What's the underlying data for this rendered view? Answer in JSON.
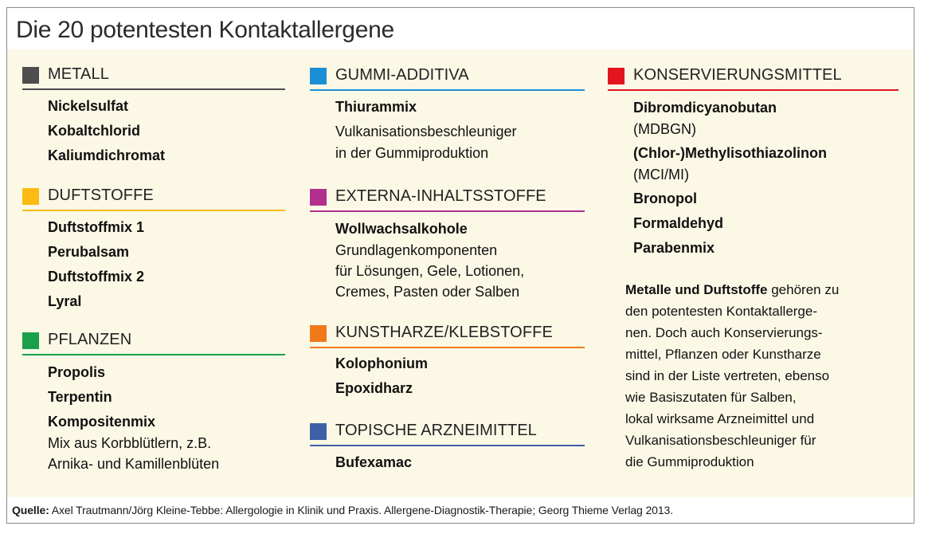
{
  "title": "Die 20 potentesten Kontaktallergene",
  "source": {
    "label": "Quelle:",
    "text": " Axel Trautmann/Jörg Kleine-Tebbe: Allergologie in Klinik und Praxis. Allergene-Diagnostik-Therapie; Georg Thieme Verlag 2013."
  },
  "colors": {
    "metall": "#4d4d4f",
    "duftstoffe": "#fbbb12",
    "pflanzen": "#1aa04a",
    "gummi": "#1b8fd6",
    "externa": "#b1308e",
    "kunstharze": "#f07a1a",
    "topische": "#3d5fa8",
    "konservierung": "#e3161f"
  },
  "categories": {
    "metall": {
      "label": "METALL",
      "items": [
        "Nickelsulfat",
        "Kobaltchlorid",
        "Kaliumdichromat"
      ]
    },
    "duftstoffe": {
      "label": "DUFTSTOFFE",
      "items": [
        "Duftstoffmix 1",
        "Perubalsam",
        "Duftstoffmix 2",
        "Lyral"
      ]
    },
    "pflanzen": {
      "label": "PFLANZEN",
      "items": [
        "Propolis",
        "Terpentin",
        "Kompositenmix"
      ],
      "notes": [
        "Mix aus Korbblütlern, z.B.",
        "Arnika- und Kamillenblüten"
      ]
    },
    "gummi": {
      "label": "GUMMI-ADDITIVA",
      "items": [
        "Thiurammix"
      ],
      "notes": [
        "Vulkanisationsbeschleuniger",
        "in der Gummiproduktion"
      ]
    },
    "externa": {
      "label": "EXTERNA-INHALTSSTOFFE",
      "items": [
        "Wollwachsalkohole"
      ],
      "notes": [
        "Grundlagenkomponenten",
        "für Lösungen, Gele, Lotionen,",
        "Cremes, Pasten oder Salben"
      ]
    },
    "kunstharze": {
      "label": "KUNSTHARZE/KLEBSTOFFE",
      "items": [
        "Kolophonium",
        "Epoxidharz"
      ]
    },
    "topische": {
      "label": "TOPISCHE ARZNEIMITTEL",
      "items": [
        "Bufexamac"
      ]
    },
    "konservierung": {
      "label": "KONSERVIERUNGSMITTEL",
      "items": [
        "Dibromdicyanobutan",
        "(MDBGN)",
        "(Chlor-)Methylisothiazolinon",
        "(MCI/MI)",
        "Bronopol",
        "Formaldehyd",
        "Parabenmix"
      ]
    }
  },
  "summary": {
    "bold": "Metalle und Duftstoffe",
    "lines": [
      " gehören zu",
      "den potentesten Kontaktallerge-",
      "nen. Doch auch Konservierungs-",
      "mittel, Pflanzen oder Kunstharze",
      "sind in der Liste vertreten, ebenso",
      "wie Basiszutaten für Salben,",
      "lokal wirksame Arzneimittel und",
      "Vulkanisationsbeschleuniger für",
      "die Gummiproduktion"
    ]
  }
}
